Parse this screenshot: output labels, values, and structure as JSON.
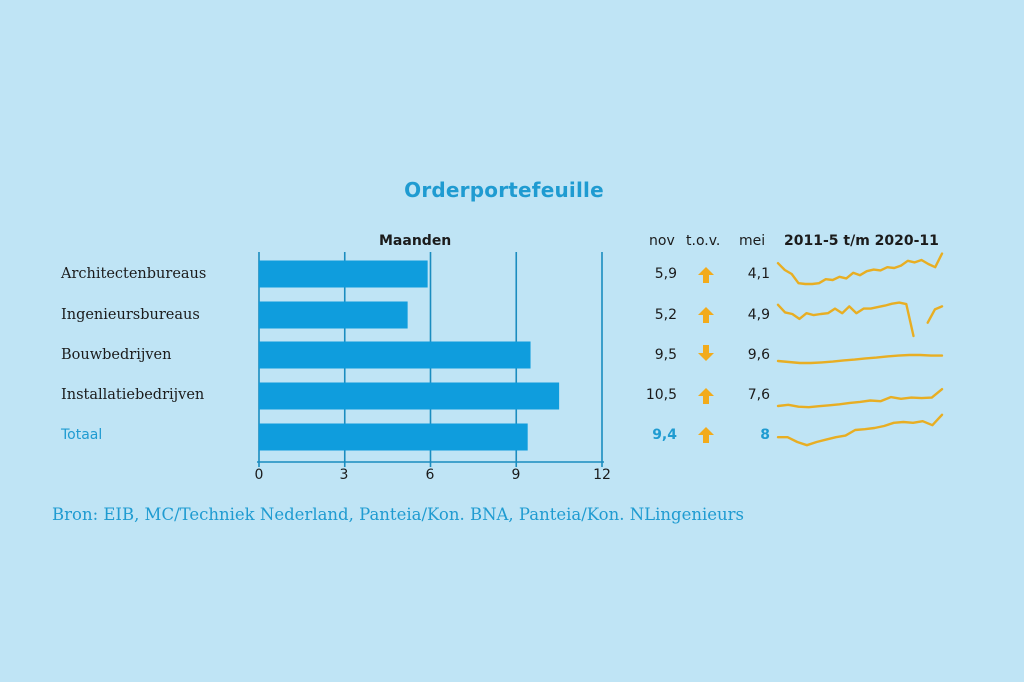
{
  "title": "Orderportefeuille",
  "headers": {
    "maanden": "Maanden",
    "nov": "nov",
    "tov": "t.o.v.",
    "mei": "mei",
    "period": "2011-5 t/m 2020-11"
  },
  "colors": {
    "background": "#bfe4f5",
    "bar": "#0f9ddd",
    "accent": "#1f9bd1",
    "arrow": "#f2ab1b",
    "spark": "#e8ae23",
    "grid": "#1a8cbf"
  },
  "chart_data": {
    "type": "bar",
    "orientation": "horizontal",
    "title": "Orderportefeuille",
    "xlabel": "Maanden",
    "categories": [
      "Architectenbureaus",
      "Ingenieursbureaus",
      "Bouwbedrijven",
      "Installatiebedrijven",
      "Totaal"
    ],
    "values": [
      5.9,
      5.2,
      9.5,
      10.5,
      9.4
    ],
    "xlim": [
      0,
      12
    ],
    "xticks": [
      "0",
      "3",
      "6",
      "9",
      "12"
    ],
    "grid": true
  },
  "table": {
    "rows": [
      {
        "nov": "5,9",
        "dir": "up",
        "mei": "4,1"
      },
      {
        "nov": "5,2",
        "dir": "up",
        "mei": "4,9"
      },
      {
        "nov": "9,5",
        "dir": "down",
        "mei": "9,6"
      },
      {
        "nov": "10,5",
        "dir": "up",
        "mei": "7,6"
      },
      {
        "nov": "9,4",
        "dir": "up",
        "mei": "8"
      }
    ]
  },
  "sparklines": [
    [
      0.72,
      0.55,
      0.45,
      0.22,
      0.2,
      0.2,
      0.22,
      0.32,
      0.3,
      0.38,
      0.34,
      0.48,
      0.42,
      0.52,
      0.56,
      0.54,
      0.62,
      0.6,
      0.66,
      0.78,
      0.74,
      0.8,
      0.7,
      0.62,
      0.96
    ],
    [
      0.82,
      0.62,
      0.58,
      0.45,
      0.6,
      0.55,
      0.58,
      0.6,
      0.72,
      0.6,
      0.78,
      0.6,
      0.72,
      0.72,
      0.76,
      0.8,
      0.85,
      0.88,
      0.84,
      0.0,
      null,
      0.35,
      0.7,
      0.78
    ],
    [
      0.45,
      0.4,
      0.35,
      0.35,
      0.38,
      0.42,
      0.48,
      0.52,
      0.58,
      0.62,
      0.68,
      0.72,
      0.75,
      0.75,
      0.72,
      0.72
    ],
    [
      0.25,
      0.3,
      0.22,
      0.2,
      0.24,
      0.28,
      0.32,
      0.38,
      0.42,
      0.48,
      0.45,
      0.62,
      0.55,
      0.6,
      0.58,
      0.6,
      0.95
    ],
    [
      0.42,
      0.42,
      0.3,
      0.22,
      0.3,
      0.36,
      0.42,
      0.46,
      0.6,
      0.62,
      0.65,
      0.7,
      0.78,
      0.8,
      0.78,
      0.82,
      0.72,
      0.98
    ]
  ],
  "source": "Bron: EIB, MC/Techniek Nederland, Panteia/Kon. BNA, Panteia/Kon. NLingenieurs"
}
